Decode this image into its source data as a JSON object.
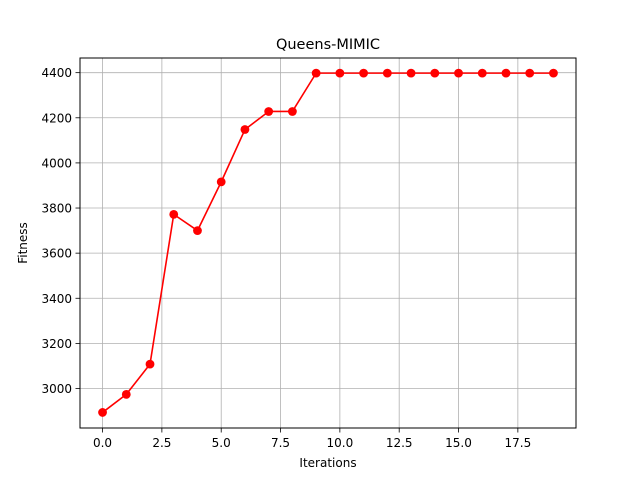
{
  "chart_data": {
    "type": "line",
    "title": "Queens-MIMIC",
    "xlabel": "Iterations",
    "ylabel": "Fitness",
    "xlim": [
      -0.95,
      19.95
    ],
    "ylim": [
      2825,
      4465
    ],
    "xticks": [
      0.0,
      2.5,
      5.0,
      7.5,
      10.0,
      12.5,
      15.0,
      17.5
    ],
    "xtick_labels": [
      "0.0",
      "2.5",
      "5.0",
      "7.5",
      "10.0",
      "12.5",
      "15.0",
      "17.5"
    ],
    "yticks": [
      3000,
      3200,
      3400,
      3600,
      3800,
      4000,
      4200,
      4400
    ],
    "ytick_labels": [
      "3000",
      "3200",
      "3400",
      "3600",
      "3800",
      "4000",
      "4200",
      "4400"
    ],
    "grid": true,
    "legend": "none",
    "series": [
      {
        "color": "#ff0000",
        "marker": "circle",
        "x": [
          0,
          1,
          2,
          3,
          4,
          5,
          6,
          7,
          8,
          9,
          10,
          11,
          12,
          13,
          14,
          15,
          16,
          17,
          18,
          19
        ],
        "values": [
          2894,
          2974,
          3108,
          3772,
          3700,
          3916,
          4148,
          4228,
          4228,
          4398,
          4398,
          4398,
          4398,
          4398,
          4398,
          4398,
          4398,
          4398,
          4398,
          4398
        ]
      }
    ]
  }
}
